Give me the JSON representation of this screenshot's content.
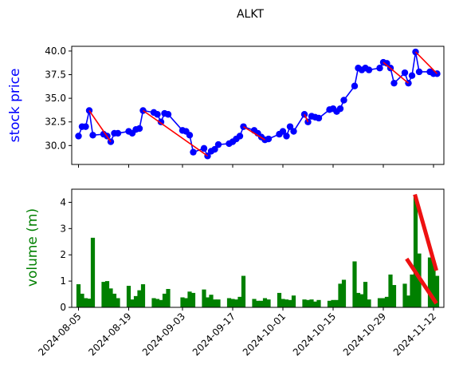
{
  "chart_data": {
    "type": "line+bar",
    "title": "ALKT",
    "x_dates": [
      "2024-08-05",
      "2024-08-06",
      "2024-08-07",
      "2024-08-08",
      "2024-08-09",
      "2024-08-12",
      "2024-08-13",
      "2024-08-14",
      "2024-08-15",
      "2024-08-16",
      "2024-08-19",
      "2024-08-20",
      "2024-08-21",
      "2024-08-22",
      "2024-08-23",
      "2024-08-26",
      "2024-08-27",
      "2024-08-28",
      "2024-08-29",
      "2024-08-30",
      "2024-09-03",
      "2024-09-04",
      "2024-09-05",
      "2024-09-06",
      "2024-09-09",
      "2024-09-10",
      "2024-09-11",
      "2024-09-12",
      "2024-09-13",
      "2024-09-16",
      "2024-09-17",
      "2024-09-18",
      "2024-09-19",
      "2024-09-20",
      "2024-09-23",
      "2024-09-24",
      "2024-09-25",
      "2024-09-26",
      "2024-09-27",
      "2024-09-30",
      "2024-10-01",
      "2024-10-02",
      "2024-10-03",
      "2024-10-04",
      "2024-10-07",
      "2024-10-08",
      "2024-10-09",
      "2024-10-10",
      "2024-10-11",
      "2024-10-14",
      "2024-10-15",
      "2024-10-16",
      "2024-10-17",
      "2024-10-18",
      "2024-10-21",
      "2024-10-22",
      "2024-10-23",
      "2024-10-24",
      "2024-10-25",
      "2024-10-28",
      "2024-10-29",
      "2024-10-30",
      "2024-10-31",
      "2024-11-01",
      "2024-11-04",
      "2024-11-05",
      "2024-11-06",
      "2024-11-07",
      "2024-11-08",
      "2024-11-11",
      "2024-11-12",
      "2024-11-13"
    ],
    "x_tick_labels": [
      "2024-08-05",
      "2024-08-19",
      "2024-09-03",
      "2024-09-17",
      "2024-10-01",
      "2024-10-15",
      "2024-10-29",
      "2024-11-12"
    ],
    "price_panel": {
      "ylabel": "stock price",
      "ylim": [
        28.0,
        40.5
      ],
      "yticks": [
        "30.0",
        "32.5",
        "35.0",
        "37.5",
        "40.0"
      ],
      "values": [
        31.0,
        32.0,
        32.0,
        33.7,
        31.1,
        31.2,
        31.0,
        30.4,
        31.3,
        31.3,
        31.5,
        31.3,
        31.7,
        31.8,
        33.7,
        33.5,
        33.3,
        32.5,
        33.4,
        33.3,
        31.6,
        31.5,
        31.1,
        29.3,
        29.7,
        28.9,
        29.4,
        29.6,
        30.1,
        30.2,
        30.4,
        30.7,
        31.0,
        32.0,
        31.6,
        31.3,
        30.9,
        30.6,
        30.7,
        31.2,
        31.5,
        31.0,
        32.0,
        31.5,
        33.3,
        32.5,
        33.1,
        33.0,
        32.9,
        33.8,
        33.9,
        33.6,
        33.9,
        34.8,
        36.3,
        38.2,
        38.0,
        38.2,
        38.0,
        38.2,
        38.8,
        38.7,
        38.2,
        36.6,
        37.7,
        36.6,
        37.4,
        39.9,
        37.8,
        37.8,
        37.6,
        37.6
      ],
      "series_color": "#0000ff",
      "trend_color": "#ff0000",
      "trend_segments": [
        [
          [
            3,
            33.7
          ],
          [
            7,
            30.4
          ]
        ],
        [
          [
            14,
            33.7
          ],
          [
            25,
            28.9
          ]
        ],
        [
          [
            33,
            32.0
          ],
          [
            37,
            30.6
          ]
        ],
        [
          [
            44,
            33.3
          ],
          [
            45,
            32.5
          ]
        ],
        [
          [
            60,
            38.8
          ],
          [
            65,
            36.6
          ]
        ],
        [
          [
            67,
            39.9
          ],
          [
            71,
            37.6
          ]
        ]
      ]
    },
    "volume_panel": {
      "ylabel": "volume (m)",
      "ylim": [
        0,
        4.5
      ],
      "yticks": [
        "0",
        "1",
        "2",
        "3",
        "4"
      ],
      "values": [
        0.88,
        0.52,
        0.35,
        0.33,
        2.65,
        0.97,
        1.0,
        0.72,
        0.52,
        0.35,
        0.82,
        0.3,
        0.43,
        0.65,
        0.88,
        0.35,
        0.32,
        0.28,
        0.52,
        0.7,
        0.38,
        0.35,
        0.6,
        0.55,
        0.68,
        0.38,
        0.48,
        0.3,
        0.3,
        0.35,
        0.32,
        0.3,
        0.4,
        1.2,
        0.32,
        0.25,
        0.25,
        0.35,
        0.3,
        0.55,
        0.32,
        0.3,
        0.28,
        0.45,
        0.3,
        0.28,
        0.3,
        0.22,
        0.28,
        0.25,
        0.28,
        0.28,
        0.9,
        1.05,
        1.75,
        0.55,
        0.5,
        0.97,
        0.3,
        0.35,
        0.35,
        0.4,
        1.25,
        0.85,
        0.9,
        0.45,
        1.25,
        4.2,
        2.05,
        1.9,
        1.75,
        1.2
      ],
      "bar_color": "#008000",
      "trend_color": "#ee1111",
      "trend_segments": [
        [
          [
            64.5,
            1.85
          ],
          [
            70.8,
            0.15
          ]
        ],
        [
          [
            66.8,
            4.3
          ],
          [
            70.8,
            1.4
          ]
        ]
      ]
    }
  }
}
